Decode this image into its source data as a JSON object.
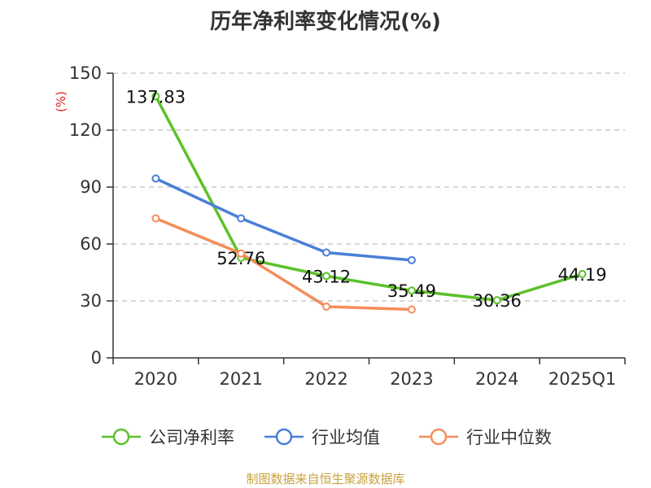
{
  "chart_data": {
    "type": "line",
    "title": "历年净利率变化情况(%)",
    "ylabel": "(%)",
    "xlabel": "",
    "categories": [
      "2020",
      "2021",
      "2022",
      "2023",
      "2024",
      "2025Q1"
    ],
    "ylim": [
      0,
      150
    ],
    "yticks": [
      0,
      30,
      60,
      90,
      120,
      150
    ],
    "grid": true,
    "legend_position": "bottom",
    "series": [
      {
        "name": "公司净利率",
        "color": "#5cc12a",
        "values": [
          137.83,
          52.76,
          43.12,
          35.49,
          30.36,
          44.19
        ],
        "labels": [
          "137.83",
          "52.76",
          "43.12",
          "35.49",
          "30.36",
          "44.19"
        ]
      },
      {
        "name": "行业均值",
        "color": "#4a7fd8",
        "values": [
          94.5,
          73.5,
          55.5,
          51.5,
          null,
          null
        ]
      },
      {
        "name": "行业中位数",
        "color": "#f58d5a",
        "values": [
          73.5,
          55.0,
          27.0,
          25.5,
          null,
          null
        ]
      }
    ]
  },
  "source": "制图数据来自恒生聚源数据库"
}
